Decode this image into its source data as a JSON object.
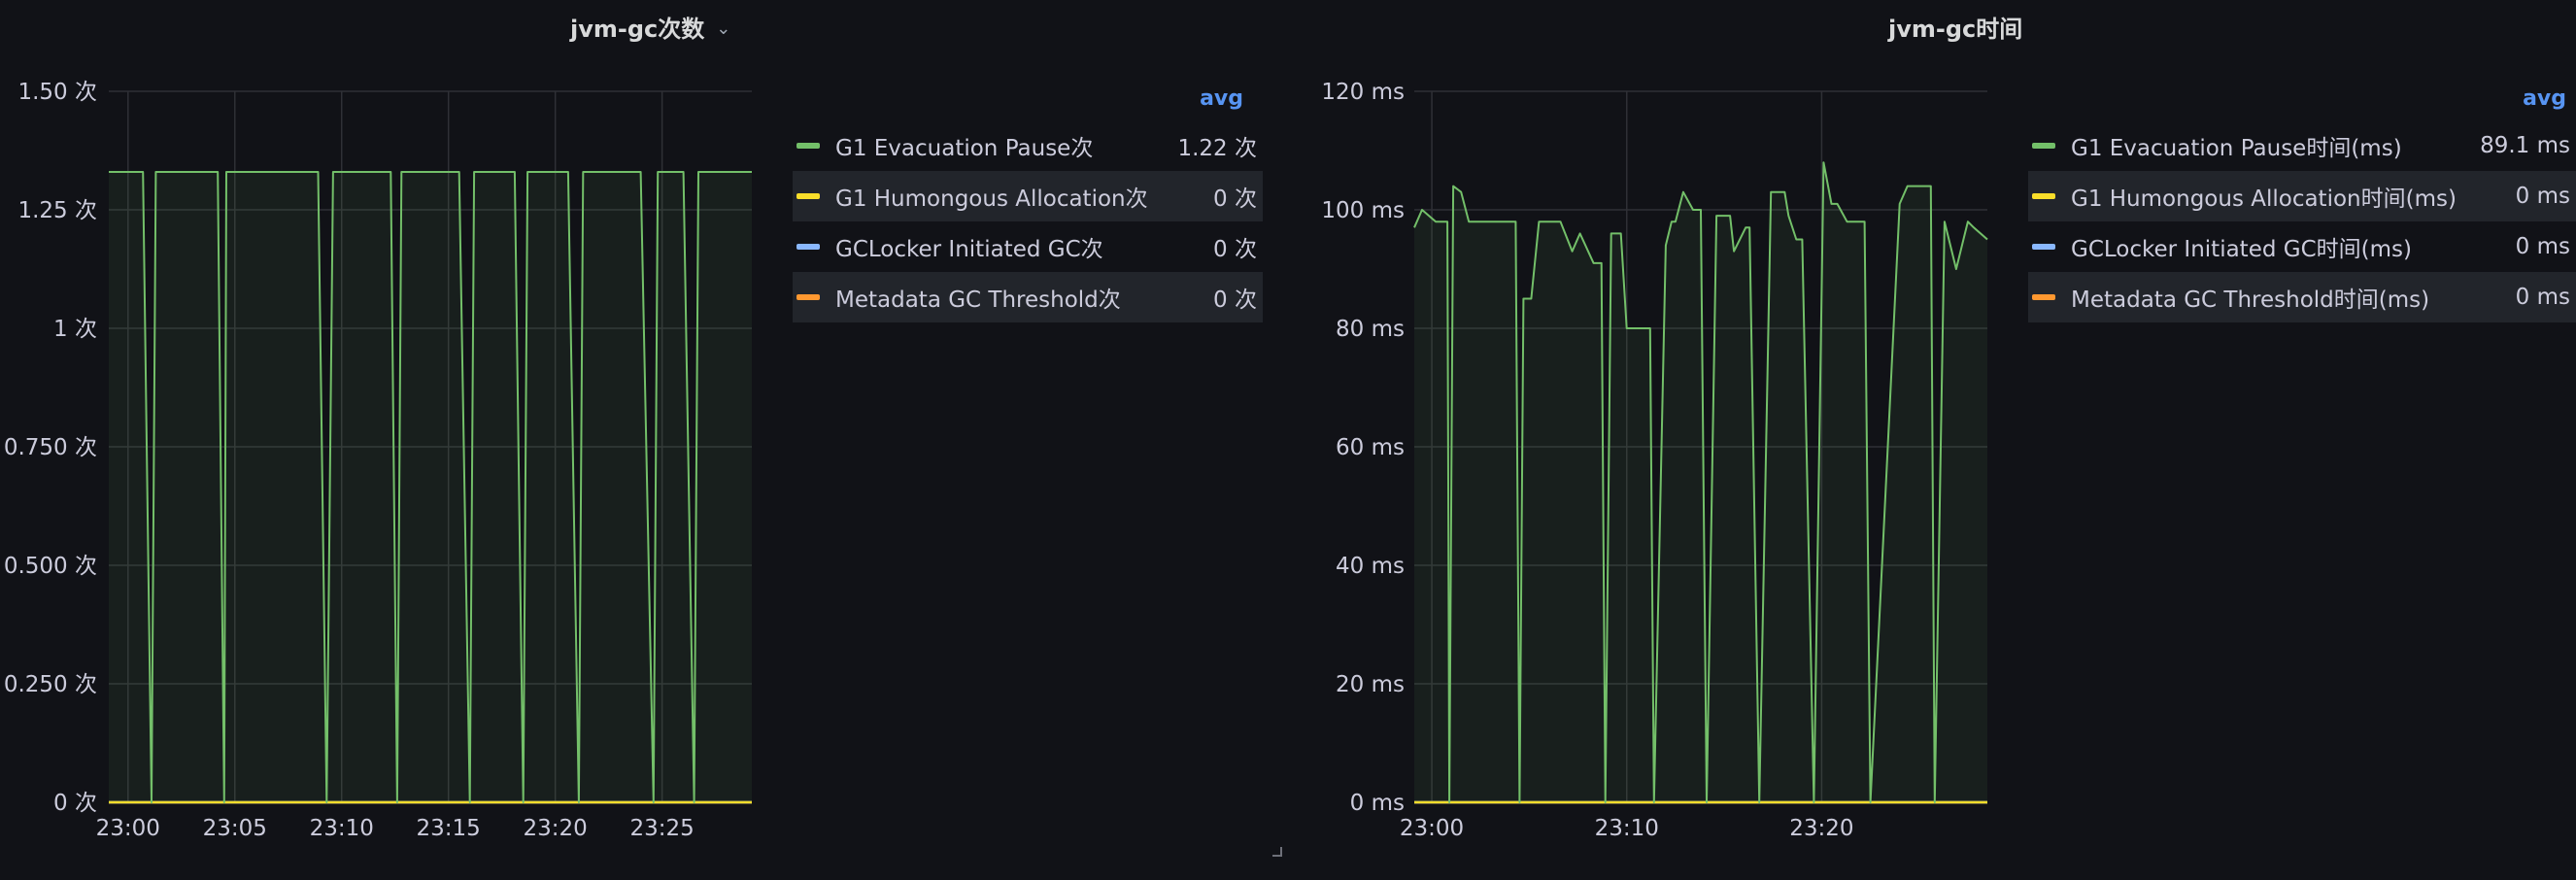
{
  "colors": {
    "background": "#111217",
    "grid": "#2f3036",
    "axis_text": "#ccccdc",
    "legend_header": "#5794f2",
    "series": [
      "#73bf69",
      "#fade2a",
      "#8ab8ff",
      "#ff9830"
    ],
    "fill": "rgba(115,191,105,0.08)"
  },
  "icons": {
    "title_menu": "chevron-down-icon",
    "resize_handle": "resize-corner-icon"
  },
  "panels": [
    {
      "title": "jvm-gc次数",
      "title_chevron": "⌄",
      "legend_header": "avg",
      "legend": [
        {
          "name": "G1 Evacuation Pause次",
          "value": "1.22 次"
        },
        {
          "name": "G1 Humongous Allocation次",
          "value": "0 次"
        },
        {
          "name": "GCLocker Initiated GC次",
          "value": "0 次"
        },
        {
          "name": "Metadata GC Threshold次",
          "value": "0 次"
        }
      ]
    },
    {
      "title": "jvm-gc时间",
      "legend_header": "avg",
      "legend": [
        {
          "name": "G1 Evacuation Pause时间(ms)",
          "value": "89.1 ms"
        },
        {
          "name": "G1 Humongous Allocation时间(ms)",
          "value": "0 ms"
        },
        {
          "name": "GCLocker Initiated GC时间(ms)",
          "value": "0 ms"
        },
        {
          "name": "Metadata GC Threshold时间(ms)",
          "value": "0 ms"
        }
      ]
    }
  ],
  "chart_data": [
    {
      "type": "line",
      "title": "jvm-gc次数",
      "x_unit": "minutes past 23:00",
      "x_range": [
        -0.9,
        29.2
      ],
      "x_ticks": [
        0,
        5,
        10,
        15,
        20,
        25
      ],
      "x_tick_labels": [
        "23:00",
        "23:05",
        "23:10",
        "23:15",
        "23:20",
        "23:25"
      ],
      "y_range": [
        0,
        1.5
      ],
      "y_ticks": [
        0,
        0.25,
        0.5,
        0.75,
        1,
        1.25,
        1.5
      ],
      "y_tick_labels": [
        "0 次",
        "0.250 次",
        "0.500 次",
        "0.750 次",
        "1 次",
        "1.25 次",
        "1.50 次"
      ],
      "grid": true,
      "legend_placement": "right",
      "series": [
        {
          "name": "G1 Evacuation Pause次",
          "x": [
            -0.9,
            0.7,
            1.1,
            1.3,
            4.2,
            4.5,
            4.6,
            8.9,
            9.3,
            9.6,
            12.3,
            12.6,
            12.8,
            15.5,
            16.0,
            16.2,
            18.1,
            18.5,
            18.7,
            20.6,
            21.1,
            21.3,
            24.0,
            24.6,
            24.8,
            26.0,
            26.5,
            26.7,
            29.2
          ],
          "values": [
            1.33,
            1.33,
            0,
            1.33,
            1.33,
            0,
            1.33,
            1.33,
            0,
            1.33,
            1.33,
            0,
            1.33,
            1.33,
            0,
            1.33,
            1.33,
            0,
            1.33,
            1.33,
            0,
            1.33,
            1.33,
            0,
            1.33,
            1.33,
            0,
            1.33,
            1.33
          ]
        },
        {
          "name": "G1 Humongous Allocation次",
          "x": [
            -0.9,
            29.2
          ],
          "values": [
            0,
            0
          ]
        },
        {
          "name": "GCLocker Initiated GC次",
          "x": [
            -0.9,
            29.2
          ],
          "values": [
            0,
            0
          ]
        },
        {
          "name": "Metadata GC Threshold次",
          "x": [
            -0.9,
            29.2
          ],
          "values": [
            0,
            0
          ]
        }
      ]
    },
    {
      "type": "line",
      "title": "jvm-gc时间",
      "x_unit": "minutes past 23:00",
      "x_range": [
        -0.9,
        28.5
      ],
      "x_ticks": [
        0,
        10,
        20
      ],
      "x_tick_labels": [
        "23:00",
        "23:10",
        "23:20"
      ],
      "y_range": [
        0,
        120
      ],
      "y_ticks": [
        0,
        20,
        40,
        60,
        80,
        100,
        120
      ],
      "y_tick_labels": [
        "0 ms",
        "20 ms",
        "40 ms",
        "60 ms",
        "80 ms",
        "100 ms",
        "120 ms"
      ],
      "grid": true,
      "legend_placement": "right",
      "series": [
        {
          "name": "G1 Evacuation Pause时间(ms)",
          "x": [
            -0.9,
            -0.5,
            0.2,
            0.8,
            0.9,
            1.1,
            1.5,
            1.9,
            2.3,
            2.7,
            3.0,
            4.3,
            4.5,
            4.7,
            5.1,
            5.5,
            6.6,
            7.2,
            7.6,
            8.3,
            8.7,
            8.9,
            9.2,
            9.7,
            10.0,
            11.2,
            11.4,
            12.0,
            12.3,
            12.5,
            12.9,
            13.4,
            13.8,
            14.1,
            14.6,
            15.3,
            15.5,
            16.1,
            16.3,
            16.8,
            17.4,
            18.1,
            18.3,
            18.7,
            19.0,
            19.6,
            20.1,
            20.5,
            20.8,
            21.3,
            21.8,
            22.2,
            22.5,
            24.0,
            24.4,
            25.6,
            25.8,
            26.3,
            26.9,
            27.5,
            27.8,
            28.5
          ],
          "values": [
            97,
            100,
            98,
            98,
            0,
            104,
            103,
            98,
            98,
            98,
            98,
            98,
            0,
            85,
            85,
            98,
            98,
            93,
            96,
            91,
            91,
            0,
            96,
            96,
            80,
            80,
            0,
            94,
            98,
            98,
            103,
            100,
            100,
            0,
            99,
            99,
            93,
            97,
            97,
            0,
            103,
            103,
            99,
            95,
            95,
            0,
            108,
            101,
            101,
            98,
            98,
            98,
            0,
            101,
            104,
            104,
            0,
            98,
            90,
            98,
            97,
            95
          ]
        },
        {
          "name": "G1 Humongous Allocation时间(ms)",
          "x": [
            -0.9,
            28.5
          ],
          "values": [
            0,
            0
          ]
        },
        {
          "name": "GCLocker Initiated GC时间(ms)",
          "x": [
            -0.9,
            28.5
          ],
          "values": [
            0,
            0
          ]
        },
        {
          "name": "Metadata GC Threshold时间(ms)",
          "x": [
            -0.9,
            28.5
          ],
          "values": [
            0,
            0
          ]
        }
      ]
    }
  ]
}
